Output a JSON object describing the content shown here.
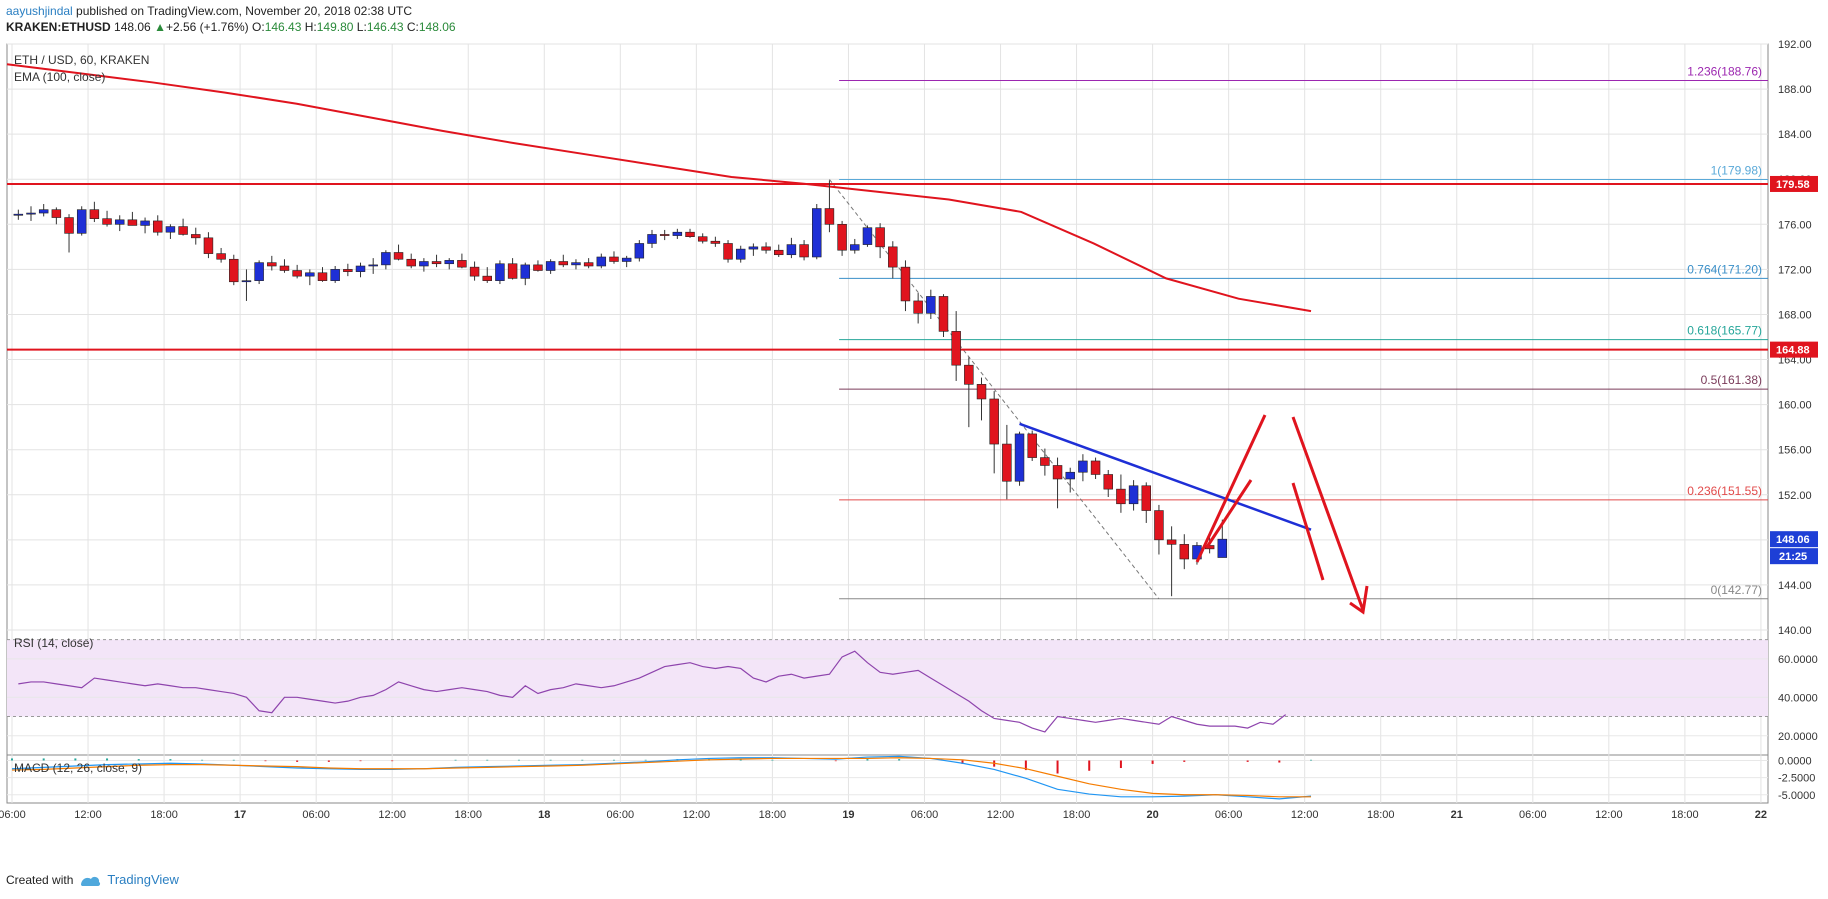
{
  "header": {
    "author": "aayushjindal",
    "published_text": " published on TradingView.com, November 20, 2018 02:38 UTC",
    "symbol": "KRAKEN:ETHUSD",
    "price": "148.06",
    "change_arrow": "▲",
    "change": "+2.56 (+1.76%)",
    "ohlc_o_label": "O:",
    "ohlc_o": "146.43",
    "ohlc_h_label": "H:",
    "ohlc_h": "149.80",
    "ohlc_l_label": "L:",
    "ohlc_l": "146.43",
    "ohlc_c_label": "C:",
    "ohlc_c": "148.06"
  },
  "footer": {
    "created_with": "Created with",
    "brand": "TradingView"
  },
  "colors": {
    "up": "#1e2fd6",
    "down": "#e0141e",
    "ema": "#e0141e",
    "resistance": "#e0141e",
    "trendline": "#1e2fd6",
    "fib_1236": "#9c27b0",
    "fib_1": "#5aa9d8",
    "fib_0764": "#3a8fc8",
    "fib_0618": "#26a69a",
    "fib_05": "#7a3b5a",
    "fib_0236": "#e24a4a",
    "fib_0": "#888888",
    "rsi": "#8e44ad",
    "rsi_band": "#f3e5f8",
    "macd": "#2196f3",
    "signal": "#f57c00"
  },
  "chart_data": {
    "type": "candlestick",
    "title": "ETH / USD, 60, KRAKEN",
    "indicator": "EMA (100, close)",
    "ylim": [
      140,
      192
    ],
    "yticks": [
      "192.00",
      "188.00",
      "184.00",
      "180.00",
      "176.00",
      "172.00",
      "168.00",
      "164.00",
      "160.00",
      "156.00",
      "152.00",
      "148.00",
      "144.00",
      "140.00"
    ],
    "xticks": [
      "06:00",
      "12:00",
      "18:00",
      "17",
      "06:00",
      "12:00",
      "18:00",
      "18",
      "06:00",
      "12:00",
      "18:00",
      "19",
      "06:00",
      "12:00",
      "18:00",
      "20",
      "06:00",
      "12:00",
      "18:00",
      "21",
      "06:00",
      "12:00",
      "18:00",
      "22"
    ],
    "candles": [
      [
        176.8,
        177.3,
        176.4,
        176.9
      ],
      [
        176.9,
        177.6,
        176.3,
        177.0
      ],
      [
        177.0,
        177.8,
        176.7,
        177.3
      ],
      [
        177.3,
        177.5,
        176.0,
        176.6
      ],
      [
        176.6,
        176.9,
        173.5,
        175.2
      ],
      [
        175.2,
        177.6,
        175.0,
        177.3
      ],
      [
        177.3,
        178.0,
        176.2,
        176.5
      ],
      [
        176.5,
        177.2,
        175.8,
        176.0
      ],
      [
        176.0,
        176.8,
        175.4,
        176.4
      ],
      [
        176.4,
        177.1,
        175.9,
        175.9
      ],
      [
        175.9,
        176.6,
        175.2,
        176.3
      ],
      [
        176.3,
        176.8,
        175.0,
        175.3
      ],
      [
        175.3,
        176.0,
        174.7,
        175.8
      ],
      [
        175.8,
        176.5,
        175.0,
        175.1
      ],
      [
        175.1,
        175.7,
        174.2,
        174.8
      ],
      [
        174.8,
        175.3,
        173.0,
        173.4
      ],
      [
        173.4,
        173.9,
        172.6,
        172.9
      ],
      [
        172.9,
        173.3,
        170.6,
        170.9
      ],
      [
        170.9,
        172.0,
        169.2,
        171.0
      ],
      [
        171.0,
        172.8,
        170.7,
        172.6
      ],
      [
        172.6,
        173.2,
        171.9,
        172.3
      ],
      [
        172.3,
        172.9,
        171.7,
        171.9
      ],
      [
        171.9,
        172.4,
        171.2,
        171.4
      ],
      [
        171.4,
        172.0,
        170.6,
        171.7
      ],
      [
        171.7,
        172.2,
        170.9,
        171.0
      ],
      [
        171.0,
        172.3,
        170.8,
        172.0
      ],
      [
        172.0,
        172.5,
        171.4,
        171.8
      ],
      [
        171.8,
        172.6,
        171.3,
        172.3
      ],
      [
        172.3,
        173.0,
        171.6,
        172.4
      ],
      [
        172.4,
        173.7,
        172.0,
        173.5
      ],
      [
        173.5,
        174.2,
        172.8,
        172.9
      ],
      [
        172.9,
        173.4,
        172.1,
        172.3
      ],
      [
        172.3,
        173.0,
        171.8,
        172.7
      ],
      [
        172.7,
        173.3,
        172.2,
        172.5
      ],
      [
        172.5,
        173.0,
        172.0,
        172.8
      ],
      [
        172.8,
        173.4,
        172.1,
        172.2
      ],
      [
        172.2,
        172.7,
        171.0,
        171.4
      ],
      [
        171.4,
        172.2,
        170.8,
        171.0
      ],
      [
        171.0,
        172.8,
        170.7,
        172.5
      ],
      [
        172.5,
        173.0,
        171.1,
        171.2
      ],
      [
        171.2,
        172.6,
        170.6,
        172.4
      ],
      [
        172.4,
        172.8,
        171.8,
        171.9
      ],
      [
        171.9,
        172.9,
        171.6,
        172.7
      ],
      [
        172.7,
        173.3,
        172.2,
        172.4
      ],
      [
        172.4,
        172.9,
        172.0,
        172.6
      ],
      [
        172.6,
        173.0,
        172.1,
        172.3
      ],
      [
        172.3,
        173.4,
        172.1,
        173.1
      ],
      [
        173.1,
        173.6,
        172.5,
        172.7
      ],
      [
        172.7,
        173.2,
        172.2,
        173.0
      ],
      [
        173.0,
        174.6,
        172.7,
        174.3
      ],
      [
        174.3,
        175.5,
        173.9,
        175.1
      ],
      [
        175.1,
        175.5,
        174.6,
        175.0
      ],
      [
        175.0,
        175.6,
        174.7,
        175.3
      ],
      [
        175.3,
        175.6,
        174.8,
        174.9
      ],
      [
        174.9,
        175.2,
        174.3,
        174.5
      ],
      [
        174.5,
        174.9,
        174.0,
        174.3
      ],
      [
        174.3,
        174.6,
        172.6,
        172.9
      ],
      [
        172.9,
        174.1,
        172.6,
        173.8
      ],
      [
        173.8,
        174.3,
        173.2,
        174.0
      ],
      [
        174.0,
        174.4,
        173.4,
        173.7
      ],
      [
        173.7,
        174.2,
        173.1,
        173.3
      ],
      [
        173.3,
        174.8,
        173.0,
        174.2
      ],
      [
        174.2,
        174.6,
        172.8,
        173.1
      ],
      [
        173.1,
        177.8,
        172.9,
        177.4
      ],
      [
        177.4,
        179.9,
        175.3,
        176.0
      ],
      [
        176.0,
        176.3,
        173.2,
        173.7
      ],
      [
        173.7,
        174.7,
        173.4,
        174.2
      ],
      [
        174.2,
        175.9,
        174.0,
        175.7
      ],
      [
        175.7,
        176.1,
        173.0,
        174.0
      ],
      [
        174.0,
        174.5,
        171.2,
        172.2
      ],
      [
        172.2,
        172.8,
        168.3,
        169.2
      ],
      [
        169.2,
        169.9,
        167.2,
        168.1
      ],
      [
        168.1,
        170.2,
        167.6,
        169.6
      ],
      [
        169.6,
        169.8,
        166.0,
        166.5
      ],
      [
        166.5,
        168.3,
        162.1,
        163.5
      ],
      [
        163.5,
        164.2,
        158.0,
        161.8
      ],
      [
        161.8,
        162.4,
        158.6,
        160.5
      ],
      [
        160.5,
        161.2,
        153.9,
        156.5
      ],
      [
        156.5,
        158.2,
        151.6,
        153.2
      ],
      [
        153.2,
        157.6,
        152.8,
        157.4
      ],
      [
        157.4,
        157.7,
        155.0,
        155.3
      ],
      [
        155.3,
        156.1,
        153.7,
        154.6
      ],
      [
        154.6,
        155.3,
        150.8,
        153.4
      ],
      [
        153.4,
        154.4,
        152.2,
        154.0
      ],
      [
        154.0,
        155.6,
        153.2,
        155.0
      ],
      [
        155.0,
        155.3,
        153.4,
        153.8
      ],
      [
        153.8,
        154.2,
        151.8,
        152.5
      ],
      [
        152.5,
        153.8,
        150.4,
        151.2
      ],
      [
        151.2,
        153.3,
        150.6,
        152.8
      ],
      [
        152.8,
        153.1,
        149.5,
        150.6
      ],
      [
        150.6,
        151.1,
        146.7,
        148.0
      ],
      [
        148.0,
        149.2,
        143.0,
        147.6
      ],
      [
        147.6,
        148.5,
        145.4,
        146.3
      ],
      [
        146.3,
        147.8,
        145.8,
        147.5
      ],
      [
        147.5,
        148.2,
        146.8,
        147.2
      ],
      [
        146.43,
        149.8,
        146.43,
        148.06
      ]
    ],
    "ema100": [
      190.2,
      189.4,
      188.6,
      187.7,
      186.7,
      185.5,
      184.3,
      183.2,
      182.2,
      181.2,
      180.2,
      179.6,
      178.9,
      178.2,
      177.1,
      174.3,
      171.2,
      169.4,
      168.3
    ],
    "horizontal_levels": [
      {
        "label": "179.58",
        "value": 179.58
      },
      {
        "label": "164.88",
        "value": 164.88
      }
    ],
    "fib_levels": [
      {
        "ratio": "1.236",
        "value": 188.76,
        "text": "1.236(188.76)"
      },
      {
        "ratio": "1",
        "value": 179.98,
        "text": "1(179.98)"
      },
      {
        "ratio": "0.764",
        "value": 171.2,
        "text": "0.764(171.20)"
      },
      {
        "ratio": "0.618",
        "value": 165.77,
        "text": "0.618(165.77)"
      },
      {
        "ratio": "0.5",
        "value": 161.38,
        "text": "0.5(161.38)"
      },
      {
        "ratio": "0.236",
        "value": 151.55,
        "text": "0.236(151.55)"
      },
      {
        "ratio": "0",
        "value": 142.77,
        "text": "0(142.77)"
      }
    ],
    "trendline": {
      "from_candle": 79,
      "from_value": 158.3,
      "to_candle": 102,
      "to_value": 148.9
    },
    "price_label": "148.06",
    "timer_label": "21:25",
    "rsi": {
      "title": "RSI (14, close)",
      "ylim": [
        10,
        75
      ],
      "bands": [
        30,
        70
      ],
      "yticks": [
        "60.0000",
        "40.0000",
        "20.0000"
      ],
      "tick_values": [
        60,
        40,
        20
      ],
      "values": [
        47,
        48,
        48,
        47,
        46,
        45,
        50,
        49,
        48,
        47,
        46,
        47,
        46,
        45,
        45,
        44,
        43,
        42,
        40,
        33,
        32,
        40,
        40,
        39,
        38,
        37,
        38,
        40,
        41,
        44,
        48,
        46,
        44,
        43,
        44,
        45,
        44,
        43,
        41,
        40,
        46,
        42,
        44,
        45,
        47,
        46,
        45,
        46,
        48,
        50,
        53,
        56,
        57,
        58,
        56,
        55,
        56,
        55,
        50,
        48,
        51,
        52,
        50,
        51,
        52,
        61,
        64,
        58,
        53,
        52,
        53,
        54,
        50,
        46,
        42,
        38,
        33,
        29,
        28,
        27,
        24,
        22,
        30,
        29,
        28,
        27,
        28,
        29,
        28,
        27,
        26,
        30,
        28,
        26,
        25,
        25,
        25,
        24,
        27,
        26,
        31
      ]
    },
    "macd": {
      "title": "MACD (12, 26, close, 9)",
      "ylim": [
        -6.2,
        0.8
      ],
      "yticks": [
        "0.0000",
        "-2.5000",
        "-5.0000"
      ],
      "tick_values": [
        0,
        -2.5,
        -5
      ],
      "macd_line": [
        -1.2,
        -1.0,
        -0.8,
        -0.6,
        -0.5,
        -0.4,
        -0.5,
        -0.7,
        -0.9,
        -1.1,
        -1.2,
        -1.3,
        -1.3,
        -1.2,
        -1.0,
        -0.9,
        -0.8,
        -0.7,
        -0.6,
        -0.4,
        -0.2,
        0.1,
        0.3,
        0.4,
        0.4,
        0.3,
        0.2,
        0.5,
        0.6,
        0.3,
        -0.4,
        -1.3,
        -2.6,
        -4.2,
        -4.9,
        -5.3,
        -5.3,
        -5.2,
        -5.0,
        -5.3,
        -5.6,
        -5.2
      ],
      "signal_line": [
        -1.4,
        -1.3,
        -1.1,
        -0.9,
        -0.7,
        -0.6,
        -0.6,
        -0.7,
        -0.8,
        -0.9,
        -1.1,
        -1.2,
        -1.2,
        -1.2,
        -1.1,
        -1.0,
        -0.9,
        -0.8,
        -0.7,
        -0.5,
        -0.3,
        -0.1,
        0.1,
        0.2,
        0.3,
        0.3,
        0.3,
        0.3,
        0.4,
        0.3,
        0.1,
        -0.4,
        -1.2,
        -2.3,
        -3.4,
        -4.2,
        -4.8,
        -5.0,
        -5.0,
        -5.1,
        -5.3,
        -5.3
      ],
      "histogram": [
        0.3,
        0.3,
        0.3,
        0.3,
        0.2,
        0.2,
        0.1,
        0.1,
        -0.1,
        -0.2,
        -0.2,
        -0.1,
        -0.1,
        0.0,
        0.1,
        0.1,
        0.1,
        0.1,
        0.1,
        0.1,
        0.1,
        0.2,
        0.2,
        0.2,
        0.1,
        0.0,
        -0.1,
        0.2,
        0.2,
        0.0,
        -0.5,
        -0.9,
        -1.4,
        -1.9,
        -1.5,
        -1.1,
        -0.5,
        -0.2,
        0.0,
        -0.2,
        -0.3,
        0.1
      ]
    }
  }
}
